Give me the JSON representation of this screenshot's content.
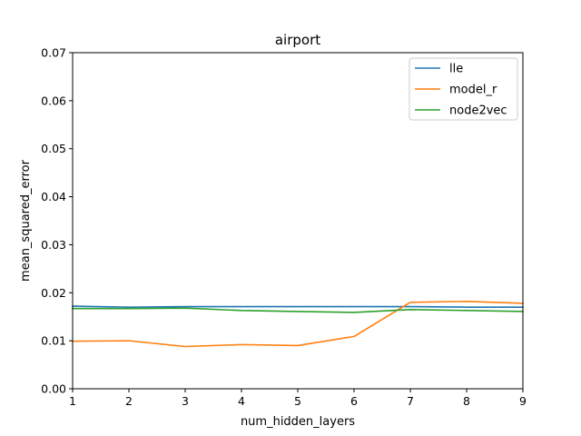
{
  "chart_data": {
    "type": "line",
    "title": "airport",
    "xlabel": "num_hidden_layers",
    "ylabel": "mean_squared_error",
    "x": [
      1,
      2,
      3,
      4,
      5,
      6,
      7,
      8,
      9
    ],
    "xlim": [
      1,
      9
    ],
    "ylim": [
      0,
      0.07
    ],
    "xticks": [
      "1",
      "2",
      "3",
      "4",
      "5",
      "6",
      "7",
      "8",
      "9"
    ],
    "yticks": [
      "0.00",
      "0.01",
      "0.02",
      "0.03",
      "0.04",
      "0.05",
      "0.06",
      "0.07"
    ],
    "grid": false,
    "legend_position": "top-right",
    "series": [
      {
        "name": "lle",
        "color": "#1f77b4",
        "values": [
          0.0172,
          0.017,
          0.0171,
          0.0171,
          0.0171,
          0.0171,
          0.0171,
          0.017,
          0.017
        ]
      },
      {
        "name": "model_r",
        "color": "#ff7f0e",
        "values": [
          0.0099,
          0.01,
          0.0088,
          0.0092,
          0.009,
          0.0109,
          0.018,
          0.0182,
          0.0178
        ]
      },
      {
        "name": "node2vec",
        "color": "#2ca02c",
        "values": [
          0.0167,
          0.0167,
          0.0168,
          0.0163,
          0.0161,
          0.0159,
          0.0165,
          0.0163,
          0.0161
        ]
      }
    ]
  }
}
